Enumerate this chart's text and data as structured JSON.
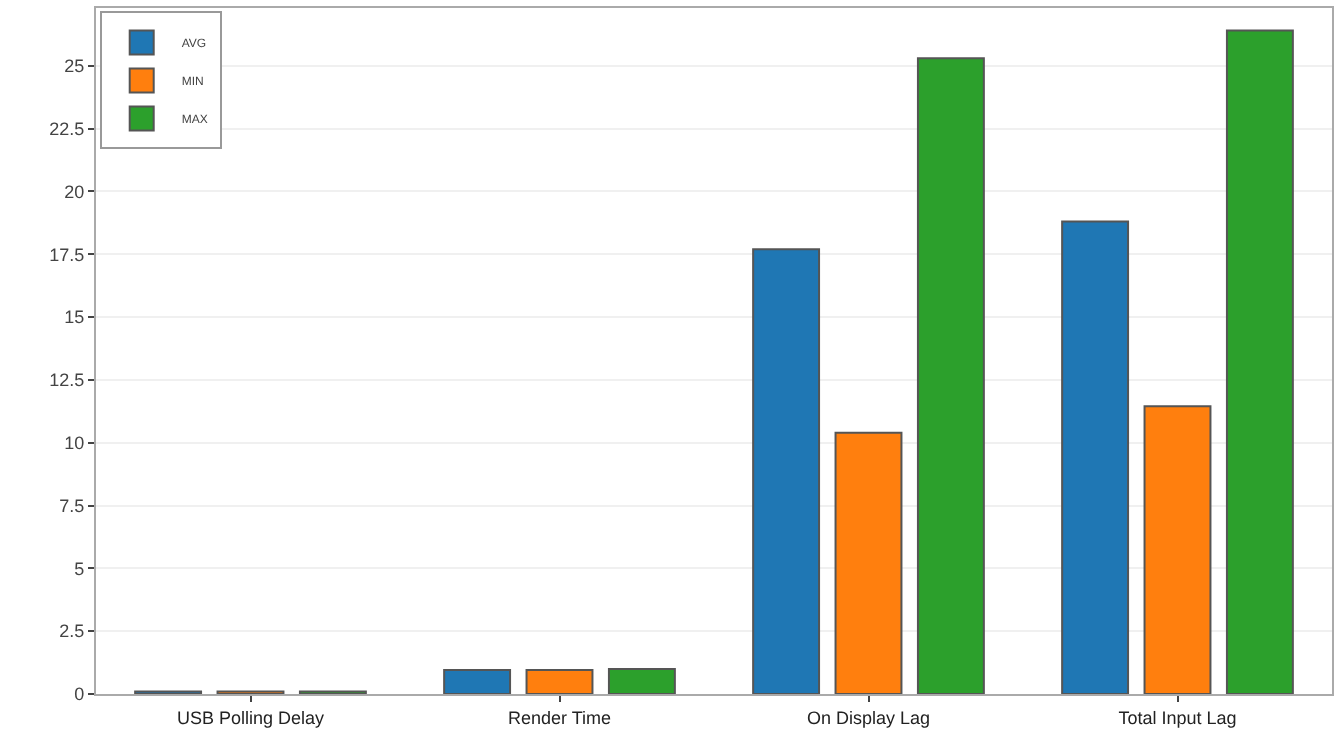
{
  "chart_data": {
    "type": "bar",
    "categories": [
      "USB Polling Delay",
      "Render Time",
      "On Display Lag",
      "Total Input Lag"
    ],
    "series": [
      {
        "name": "AVG",
        "color": "#1f77b4",
        "values": [
          0.1,
          0.95,
          17.7,
          18.8
        ]
      },
      {
        "name": "MIN",
        "color": "#ff7f0e",
        "values": [
          0.1,
          0.95,
          10.4,
          11.45
        ]
      },
      {
        "name": "MAX",
        "color": "#2ca02c",
        "values": [
          0.1,
          1.0,
          25.3,
          26.4
        ]
      }
    ],
    "ylim": [
      0,
      27.3
    ],
    "yticks": [
      0,
      2.5,
      5,
      7.5,
      10,
      12.5,
      15,
      17.5,
      20,
      22.5,
      25
    ],
    "grid": "y",
    "legend": "top left"
  }
}
